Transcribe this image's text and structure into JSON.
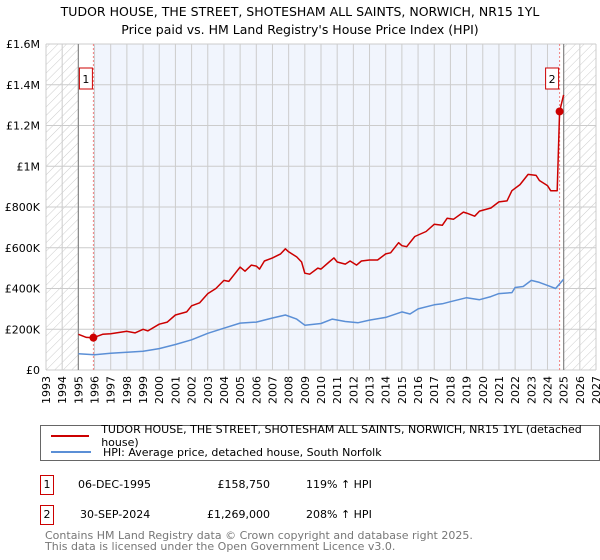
{
  "title_line1": "TUDOR HOUSE, THE STREET, SHOTESHAM ALL SAINTS, NORWICH, NR15 1YL",
  "title_line2": "Price paid vs. HM Land Registry's House Price Index (HPI)",
  "chart_data": {
    "type": "line",
    "title": "TUDOR HOUSE, THE STREET, SHOTESHAM ALL SAINTS, NORWICH, NR15 1YL — Price paid vs. HM Land Registry's House Price Index (HPI)",
    "xlim": [
      1993,
      2027
    ],
    "ylim": [
      0,
      1600000
    ],
    "x_ticks": [
      "1993",
      "1994",
      "1995",
      "1996",
      "1997",
      "1998",
      "1999",
      "2000",
      "2001",
      "2002",
      "2003",
      "2004",
      "2005",
      "2006",
      "2007",
      "2008",
      "2009",
      "2010",
      "2011",
      "2012",
      "2013",
      "2014",
      "2015",
      "2016",
      "2017",
      "2018",
      "2019",
      "2020",
      "2021",
      "2022",
      "2023",
      "2024",
      "2025",
      "2026",
      "2027"
    ],
    "y_ticks": [
      {
        "v": 0,
        "label": "£0"
      },
      {
        "v": 200000,
        "label": "£200K"
      },
      {
        "v": 400000,
        "label": "£400K"
      },
      {
        "v": 600000,
        "label": "£600K"
      },
      {
        "v": 800000,
        "label": "£800K"
      },
      {
        "v": 1000000,
        "label": "£1M"
      },
      {
        "v": 1200000,
        "label": "£1.2M"
      },
      {
        "v": 1400000,
        "label": "£1.4M"
      },
      {
        "v": 1600000,
        "label": "£1.6M"
      }
    ],
    "grid": true,
    "data_range": [
      1995,
      2025
    ],
    "series": [
      {
        "name": "TUDOR HOUSE, THE STREET, SHOTESHAM ALL SAINTS, NORWICH, NR15 1YL (detached house)",
        "color": "#cc0000",
        "x": [
          1995.0,
          1995.5,
          1995.93,
          1996.5,
          1997,
          1998,
          1998.5,
          1999,
          1999.3,
          2000,
          2000.5,
          2001,
          2001.7,
          2002,
          2002.5,
          2003,
          2003.5,
          2004,
          2004.3,
          2004.7,
          2005,
          2005.3,
          2005.7,
          2006,
          2006.2,
          2006.5,
          2007,
          2007.5,
          2007.8,
          2008,
          2008.5,
          2008.8,
          2009,
          2009.3,
          2009.8,
          2010,
          2010.5,
          2010.8,
          2011,
          2011.5,
          2011.8,
          2012.2,
          2012.5,
          2013,
          2013.5,
          2014,
          2014.3,
          2014.8,
          2015,
          2015.3,
          2015.8,
          2016.5,
          2017,
          2017.5,
          2017.8,
          2018.2,
          2018.8,
          2019,
          2019.5,
          2019.8,
          2020.5,
          2021,
          2021.5,
          2021.8,
          2022.3,
          2022.8,
          2023.3,
          2023.5,
          2024,
          2024.2,
          2024.6,
          2024.75,
          2025
        ],
        "y": [
          175000,
          160000,
          158750,
          175000,
          178000,
          190000,
          182000,
          200000,
          192000,
          225000,
          235000,
          270000,
          285000,
          315000,
          330000,
          375000,
          400000,
          440000,
          435000,
          475000,
          505000,
          485000,
          515000,
          510000,
          495000,
          535000,
          550000,
          570000,
          595000,
          580000,
          555000,
          530000,
          475000,
          470000,
          500000,
          495000,
          530000,
          550000,
          530000,
          520000,
          535000,
          515000,
          535000,
          540000,
          540000,
          570000,
          575000,
          625000,
          610000,
          605000,
          655000,
          680000,
          715000,
          710000,
          745000,
          740000,
          775000,
          770000,
          755000,
          780000,
          795000,
          825000,
          830000,
          880000,
          910000,
          960000,
          955000,
          930000,
          905000,
          880000,
          880000,
          1269000,
          1350000
        ]
      },
      {
        "name": "HPI: Average price, detached house, South Norfolk",
        "color": "#5b8fd6",
        "x": [
          1995,
          1996,
          1997,
          1998,
          1999,
          2000,
          2001,
          2002,
          2003,
          2004,
          2005,
          2006,
          2007,
          2007.8,
          2008.5,
          2009,
          2010,
          2010.7,
          2011.5,
          2012.3,
          2013,
          2014,
          2015,
          2015.5,
          2016,
          2017,
          2017.5,
          2018,
          2019,
          2019.8,
          2020.5,
          2021,
          2021.8,
          2022,
          2022.5,
          2023,
          2023.5,
          2024,
          2024.5,
          2025
        ],
        "y": [
          80000,
          75000,
          82000,
          87000,
          92000,
          105000,
          125000,
          148000,
          180000,
          205000,
          230000,
          235000,
          255000,
          270000,
          250000,
          220000,
          228000,
          250000,
          238000,
          232000,
          245000,
          258000,
          285000,
          275000,
          300000,
          320000,
          325000,
          335000,
          355000,
          345000,
          360000,
          375000,
          380000,
          405000,
          410000,
          440000,
          430000,
          415000,
          400000,
          445000
        ]
      }
    ],
    "annotations": [
      {
        "label": "1",
        "x": 1995.93,
        "y": 158750
      },
      {
        "label": "2",
        "x": 2024.75,
        "y": 1269000
      }
    ]
  },
  "legend": {
    "red_label": "TUDOR HOUSE, THE STREET, SHOTESHAM ALL SAINTS, NORWICH, NR15 1YL (detached house)",
    "blue_label": "HPI: Average price, detached house, South Norfolk"
  },
  "transactions": [
    {
      "num": "1",
      "date": "06-DEC-1995",
      "price": "£158,750",
      "hpi": "119% ↑ HPI"
    },
    {
      "num": "2",
      "date": "30-SEP-2024",
      "price": "£1,269,000",
      "hpi": "208% ↑ HPI"
    }
  ],
  "footer": {
    "line1": "Contains HM Land Registry data © Crown copyright and database right 2025.",
    "line2": "This data is licensed under the Open Government Licence v3.0."
  }
}
